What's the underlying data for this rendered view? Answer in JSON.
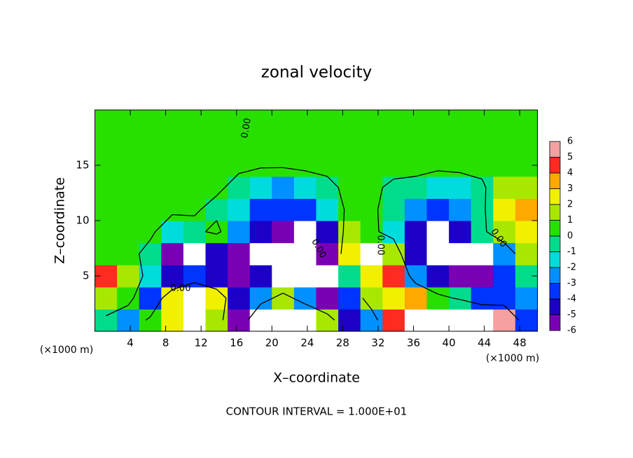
{
  "chart_data": {
    "type": "heatmap",
    "title": "zonal velocity",
    "x_label": "X–coordinate",
    "y_label": "Z–coordinate",
    "x_unit": "(×1000 m)",
    "footer": "CONTOUR INTERVAL = 1.000E+01",
    "xlim": [
      0,
      50
    ],
    "ylim": [
      0,
      20
    ],
    "xticks": [
      4,
      8,
      12,
      16,
      20,
      24,
      28,
      32,
      36,
      40,
      44,
      48
    ],
    "yticks": [
      5,
      10,
      15
    ],
    "z": [
      [
        -0.5,
        -2,
        0.5,
        3,
        7,
        2,
        -5,
        7,
        7,
        7,
        2,
        -4,
        -2,
        5,
        7,
        7,
        7,
        7,
        6,
        -3
      ],
      [
        2,
        1,
        -3,
        2.5,
        7,
        3,
        -4,
        -2.5,
        2,
        -2.5,
        -5,
        -3,
        2,
        3,
        4,
        1,
        -0.5,
        -3,
        -3,
        -2.5
      ],
      [
        4.5,
        2,
        -1,
        -4,
        -3,
        -4.5,
        -5,
        -4,
        -7,
        -7,
        -7,
        0,
        3,
        5,
        -2,
        -4.5,
        -5,
        -5,
        -3,
        0
      ],
      [
        1,
        0.5,
        -0.5,
        -5,
        -6.5,
        -4,
        -5,
        -7,
        -7,
        -7,
        -5,
        3,
        6.5,
        2,
        -4,
        -7,
        -7,
        -7,
        -2,
        2
      ],
      [
        0.5,
        0.4,
        0.3,
        -1,
        -0.5,
        0.5,
        -2,
        -4,
        -5,
        -7,
        -4,
        1.5,
        0.5,
        -1,
        -4,
        -7,
        -4.5,
        -0.5,
        2,
        2.5
      ],
      [
        0.5,
        0.5,
        0.4,
        0.3,
        0.2,
        -0.5,
        -1.5,
        -3,
        -3.5,
        -3,
        -1,
        0.3,
        0.2,
        -0.5,
        -2.5,
        -3.5,
        -2.5,
        -0.5,
        3,
        4
      ],
      [
        0.6,
        0.7,
        0.8,
        0.6,
        0.5,
        0.3,
        -0.5,
        -1.5,
        -2.5,
        -1.5,
        -0.5,
        0.5,
        0.3,
        -0.3,
        -0.5,
        -1.5,
        -1,
        -0.3,
        1.5,
        2
      ],
      [
        0.8,
        1,
        0.8,
        0.6,
        0.5,
        0.5,
        0.3,
        0.2,
        0.3,
        0.5,
        0.5,
        0.3,
        0.3,
        0.5,
        0.5,
        0.5,
        0.5,
        0.5,
        0.3,
        0.5
      ],
      [
        0.8,
        0.8,
        0.5,
        0.5,
        0.5,
        0.5,
        0.5,
        0.5,
        0.5,
        0.5,
        0.5,
        0.5,
        0.5,
        0.5,
        0.5,
        0.5,
        0.5,
        0.5,
        0.5,
        0.5
      ],
      [
        0.5,
        0.5,
        0.5,
        0.5,
        0.5,
        0.5,
        0.5,
        0.3,
        0.5,
        0.5,
        0.5,
        0.5,
        0.5,
        0.5,
        0.5,
        0.5,
        0.5,
        0.5,
        0.5,
        0.5
      ]
    ],
    "colorbar": {
      "ticks": [
        -6,
        -5,
        -4,
        -3,
        -2,
        -1,
        0,
        1,
        2,
        3,
        4,
        5,
        6
      ],
      "colors": [
        "#7a00b4",
        "#1c00c8",
        "#0034ff",
        "#0090ff",
        "#00dcdc",
        "#00dc8c",
        "#28e000",
        "#a8e800",
        "#f0f000",
        "#ffa800",
        "#ff2a20",
        "#f4a0a0"
      ]
    },
    "contour_levels": [
      {
        "value": 0,
        "label": "0.00"
      }
    ]
  }
}
